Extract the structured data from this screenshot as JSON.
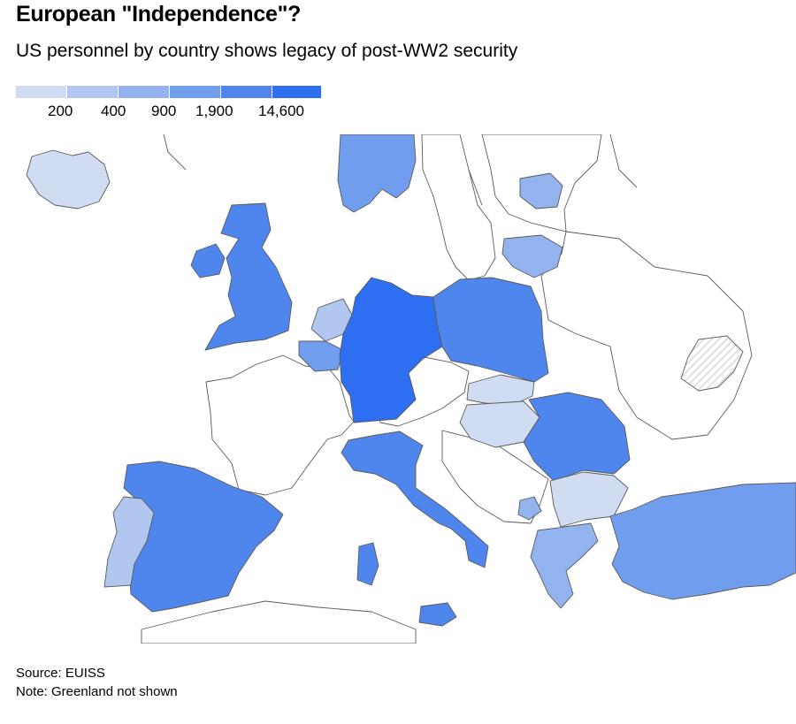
{
  "header": {
    "title": "European \"Independence\"?",
    "subtitle": "US personnel by country shows legacy of post-WW2 security"
  },
  "legend": {
    "title": "",
    "bins": [
      {
        "color": "#d0dcf2",
        "label": ""
      },
      {
        "color": "#b1c7f0",
        "label": "200"
      },
      {
        "color": "#93b3ee",
        "label": "400"
      },
      {
        "color": "#709ded",
        "label": "900"
      },
      {
        "color": "#4f86ee",
        "label": "1,900"
      },
      {
        "color": "#2d6ff0",
        "label": "14,600"
      }
    ]
  },
  "map": {
    "region": "Europe",
    "countries": [
      {
        "name": "Iceland",
        "bin": 0
      },
      {
        "name": "Norway",
        "bin": 3
      },
      {
        "name": "Estonia",
        "bin": 2
      },
      {
        "name": "Lithuania",
        "bin": 2
      },
      {
        "name": "United Kingdom",
        "bin": 4
      },
      {
        "name": "Ireland",
        "bin": 4
      },
      {
        "name": "Netherlands",
        "bin": 1
      },
      {
        "name": "Belgium",
        "bin": 3
      },
      {
        "name": "Germany",
        "bin": 5
      },
      {
        "name": "Poland",
        "bin": 4
      },
      {
        "name": "Slovakia",
        "bin": 0
      },
      {
        "name": "Hungary",
        "bin": 0
      },
      {
        "name": "Romania",
        "bin": 4
      },
      {
        "name": "Bulgaria",
        "bin": 0
      },
      {
        "name": "Italy",
        "bin": 4
      },
      {
        "name": "Spain",
        "bin": 4
      },
      {
        "name": "Portugal",
        "bin": 1
      },
      {
        "name": "Greece",
        "bin": 2
      },
      {
        "name": "Turkey",
        "bin": 3
      },
      {
        "name": "Kosovo",
        "bin": 2
      }
    ],
    "hatched_region": "Crimea",
    "colors": {
      "no_data": "#ffffff",
      "border": "#5a5a5a",
      "hatch": "#d9d9d9"
    }
  },
  "footer": {
    "source": "Source: EUISS",
    "note": "Note: Greenland not shown"
  }
}
